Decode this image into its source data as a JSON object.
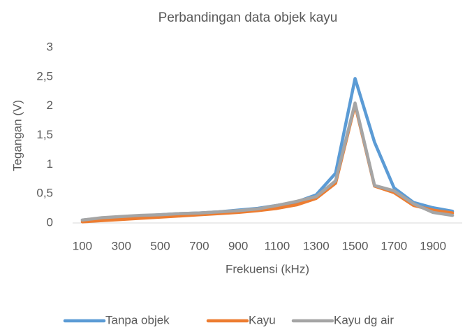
{
  "chart_data": {
    "type": "line",
    "title": "Perbandingan data objek kayu",
    "x_label": "Frekuensi (kHz)",
    "y_label": "Tegangan (V)",
    "categories": [
      100,
      null,
      300,
      null,
      500,
      null,
      700,
      null,
      900,
      null,
      1100,
      null,
      1300,
      null,
      1500,
      null,
      1700,
      null,
      1900,
      null
    ],
    "series": [
      {
        "name": "Tanpa objek",
        "color": "#5b9bd5",
        "values": [
          0.05,
          0.08,
          0.1,
          0.12,
          0.14,
          0.16,
          0.17,
          0.19,
          0.22,
          0.25,
          0.3,
          0.36,
          0.48,
          0.85,
          2.47,
          1.38,
          0.6,
          0.35,
          0.26,
          0.2
        ]
      },
      {
        "name": "Kayu",
        "color": "#ed7d31",
        "values": [
          0.02,
          0.04,
          0.06,
          0.08,
          0.1,
          0.12,
          0.14,
          0.16,
          0.18,
          0.21,
          0.25,
          0.31,
          0.42,
          0.68,
          2.02,
          0.63,
          0.52,
          0.3,
          0.22,
          0.17
        ]
      },
      {
        "name": "Kayu dg air",
        "color": "#a5a5a5",
        "values": [
          0.05,
          0.09,
          0.11,
          0.13,
          0.14,
          0.16,
          0.17,
          0.19,
          0.21,
          0.24,
          0.3,
          0.37,
          0.45,
          0.72,
          2.05,
          0.64,
          0.55,
          0.33,
          0.18,
          0.13
        ]
      }
    ],
    "ylim": [
      0,
      3
    ],
    "yticks": [
      0,
      {
        "value": 0.5,
        "label": "0,5"
      },
      1,
      {
        "value": 1.5,
        "label": "1,5"
      },
      2,
      {
        "value": 2.5,
        "label": "2,5"
      },
      3
    ],
    "grid": false,
    "legend": "bottom"
  }
}
